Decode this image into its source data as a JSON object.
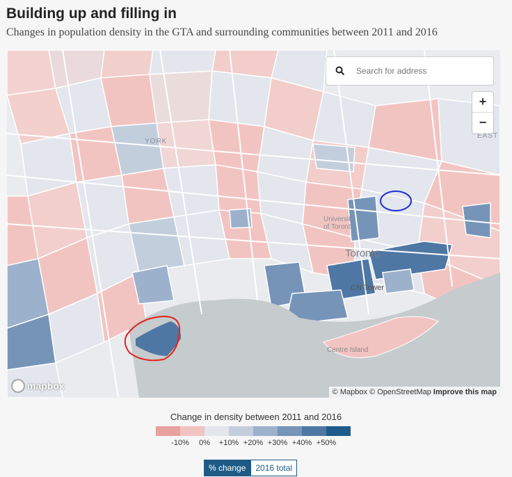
{
  "header": {
    "title": "Building up and filling in",
    "subtitle": "Changes in population density in the GTA and surrounding communities between 2011 and 2016"
  },
  "search": {
    "placeholder": "Search for address"
  },
  "zoom": {
    "in_label": "+",
    "out_label": "−"
  },
  "map_labels": {
    "york": "YORK",
    "university": "University\nof Toronto",
    "toronto": "Toronto",
    "cn_tower": "CN Tower",
    "centre_island": "Centre Island",
    "east": "EAST"
  },
  "logo": {
    "text": "mapbox"
  },
  "attribution": {
    "mapbox": "© Mapbox",
    "osm": "© OpenStreetMap",
    "improve": "Improve this map"
  },
  "legend": {
    "title": "Change in density between 2011 and 2016",
    "ticks": [
      "-10%",
      "0%",
      "+10%",
      "+20%",
      "+30%",
      "+40%",
      "+50%"
    ],
    "colors": [
      "#e7a19e",
      "#f2c4c1",
      "#e3e6ec",
      "#c3cedd",
      "#9cb1cb",
      "#7594b8",
      "#4f77a3",
      "#1f5c8c"
    ]
  },
  "toggle": {
    "pct_label": "% change",
    "total_label": "2016 total"
  },
  "colors": {
    "water": "#c6cbce",
    "land": "#e9ebee",
    "road": "#ffffff",
    "annotation_red": "#e8201a",
    "annotation_blue": "#1f2fd6"
  }
}
